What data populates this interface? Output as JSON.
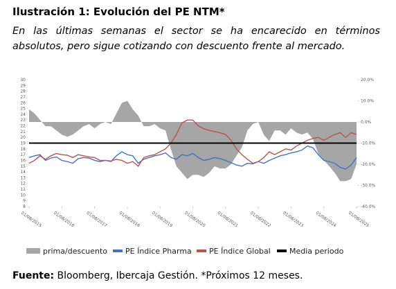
{
  "chart_data": {
    "type": "line",
    "title": "Ilustración 1: Evolución del PE NTM*",
    "subtitle": "En las últimas semanas el sector se ha encarecido en términos absolutos, pero sigue cotizando con descuento frente al mercado.",
    "source_label": "Fuente:",
    "source": "Bloomberg, Ibercaja Gestión. *Próximos 12 meses.",
    "x": [
      "01/08/2015",
      "01/10/2015",
      "01/12/2015",
      "01/02/2016",
      "01/04/2016",
      "01/06/2016",
      "01/08/2016",
      "01/10/2016",
      "01/12/2016",
      "01/02/2017",
      "01/04/2017",
      "01/06/2017",
      "01/08/2017",
      "01/10/2017",
      "01/12/2017",
      "01/02/2018",
      "01/04/2018",
      "01/06/2018",
      "01/08/2018",
      "01/10/2018",
      "01/12/2018",
      "01/02/2019",
      "01/04/2019",
      "01/06/2019",
      "01/08/2019",
      "01/10/2019",
      "01/12/2019",
      "01/02/2020",
      "01/04/2020",
      "01/06/2020",
      "01/08/2020",
      "01/10/2020",
      "01/12/2020",
      "01/02/2021",
      "01/04/2021",
      "01/06/2021",
      "01/08/2021",
      "01/10/2021",
      "01/12/2021",
      "01/02/2022",
      "01/04/2022",
      "01/06/2022",
      "01/08/2022",
      "01/10/2022",
      "01/12/2022",
      "01/02/2023",
      "01/04/2023",
      "01/06/2023",
      "01/08/2023",
      "01/10/2023",
      "01/12/2023",
      "01/02/2024",
      "01/04/2024",
      "01/06/2024",
      "01/08/2024",
      "01/10/2024",
      "01/12/2024",
      "01/02/2025",
      "01/04/2025",
      "01/06/2025",
      "01/08/2025"
    ],
    "xticks": [
      "01/08/2015",
      "01/08/2016",
      "01/08/2017",
      "01/08/2018",
      "01/08/2019",
      "01/08/2020",
      "01/08/2021",
      "01/08/2022",
      "01/08/2023",
      "01/08/2024",
      "01/08/2025"
    ],
    "ylim": [
      8,
      30
    ],
    "yticks": [
      8,
      9,
      10,
      11,
      12,
      13,
      14,
      15,
      16,
      17,
      18,
      19,
      20,
      21,
      22,
      23,
      24,
      25,
      26,
      27,
      28,
      29,
      30
    ],
    "y2lim": [
      -40,
      20
    ],
    "y2ticks": [
      {
        "value": -40,
        "label": "-40.0%"
      },
      {
        "value": -30,
        "label": "-30.0%"
      },
      {
        "value": -20,
        "label": "-20.0%"
      },
      {
        "value": -10,
        "label": "-10.0%"
      },
      {
        "value": 0,
        "label": "0.0%"
      },
      {
        "value": 10,
        "label": "10.0%"
      },
      {
        "value": 20,
        "label": "20.0%"
      }
    ],
    "series": [
      {
        "name": "prima/descuento",
        "color": "#a6a6a6",
        "kind": "area",
        "axis": "y2",
        "values": [
          6,
          4,
          1,
          -2,
          -2,
          -4,
          -6,
          -7,
          -6,
          -4,
          -2,
          -1,
          -3,
          -1,
          0,
          -1,
          4,
          9,
          10,
          6,
          3,
          -2,
          -2,
          -1,
          -3,
          -4,
          -13,
          -21,
          -24,
          -27,
          -25,
          -25,
          -26,
          -24,
          -21,
          -22,
          -22,
          -20,
          -16,
          -12,
          -4,
          -1,
          0,
          -6,
          -9,
          -4,
          -4,
          -6,
          -3,
          -5,
          -6,
          -5,
          -8,
          -15,
          -18,
          -21,
          -24,
          -28,
          -28,
          -27,
          -20
        ]
      },
      {
        "name": "PE Índice Pharma",
        "color": "#4472c4",
        "kind": "line",
        "values": [
          16.5,
          16.8,
          17.0,
          16.0,
          16.4,
          16.6,
          16.0,
          15.8,
          15.5,
          16.3,
          16.5,
          16.4,
          16.0,
          15.8,
          16.0,
          15.8,
          16.8,
          17.5,
          17.0,
          16.8,
          15.5,
          16.2,
          16.5,
          16.8,
          17.0,
          17.3,
          16.5,
          16.2,
          17.0,
          16.8,
          17.2,
          16.5,
          16.0,
          16.2,
          16.5,
          16.3,
          16.0,
          15.6,
          15.2,
          15.0,
          15.5,
          15.4,
          15.8,
          15.5,
          16.0,
          16.4,
          16.8,
          17.0,
          17.3,
          17.5,
          17.8,
          18.5,
          18.2,
          17.0,
          16.0,
          15.8,
          15.5,
          14.8,
          14.5,
          15.2,
          16.5
        ]
      },
      {
        "name": "PE Índice Global",
        "color": "#c0504d",
        "kind": "line",
        "values": [
          15.5,
          16.0,
          16.8,
          16.2,
          16.8,
          17.2,
          17.0,
          16.9,
          16.5,
          17.0,
          16.8,
          16.6,
          16.5,
          16.0,
          16.0,
          15.9,
          16.2,
          16.0,
          15.5,
          15.8,
          15.0,
          16.5,
          16.8,
          17.0,
          17.5,
          18.0,
          19.0,
          20.5,
          22.5,
          23.0,
          23.0,
          22.0,
          21.5,
          21.2,
          21.0,
          20.8,
          20.5,
          19.5,
          18.0,
          17.0,
          16.2,
          15.5,
          15.8,
          16.5,
          17.5,
          17.0,
          17.5,
          18.0,
          17.8,
          18.5,
          19.0,
          19.5,
          19.8,
          20.0,
          19.5,
          20.0,
          20.5,
          20.8,
          20.0,
          20.8,
          20.5
        ]
      },
      {
        "name": "Media periodo",
        "color": "#000000",
        "kind": "hline",
        "value": 19
      }
    ]
  }
}
